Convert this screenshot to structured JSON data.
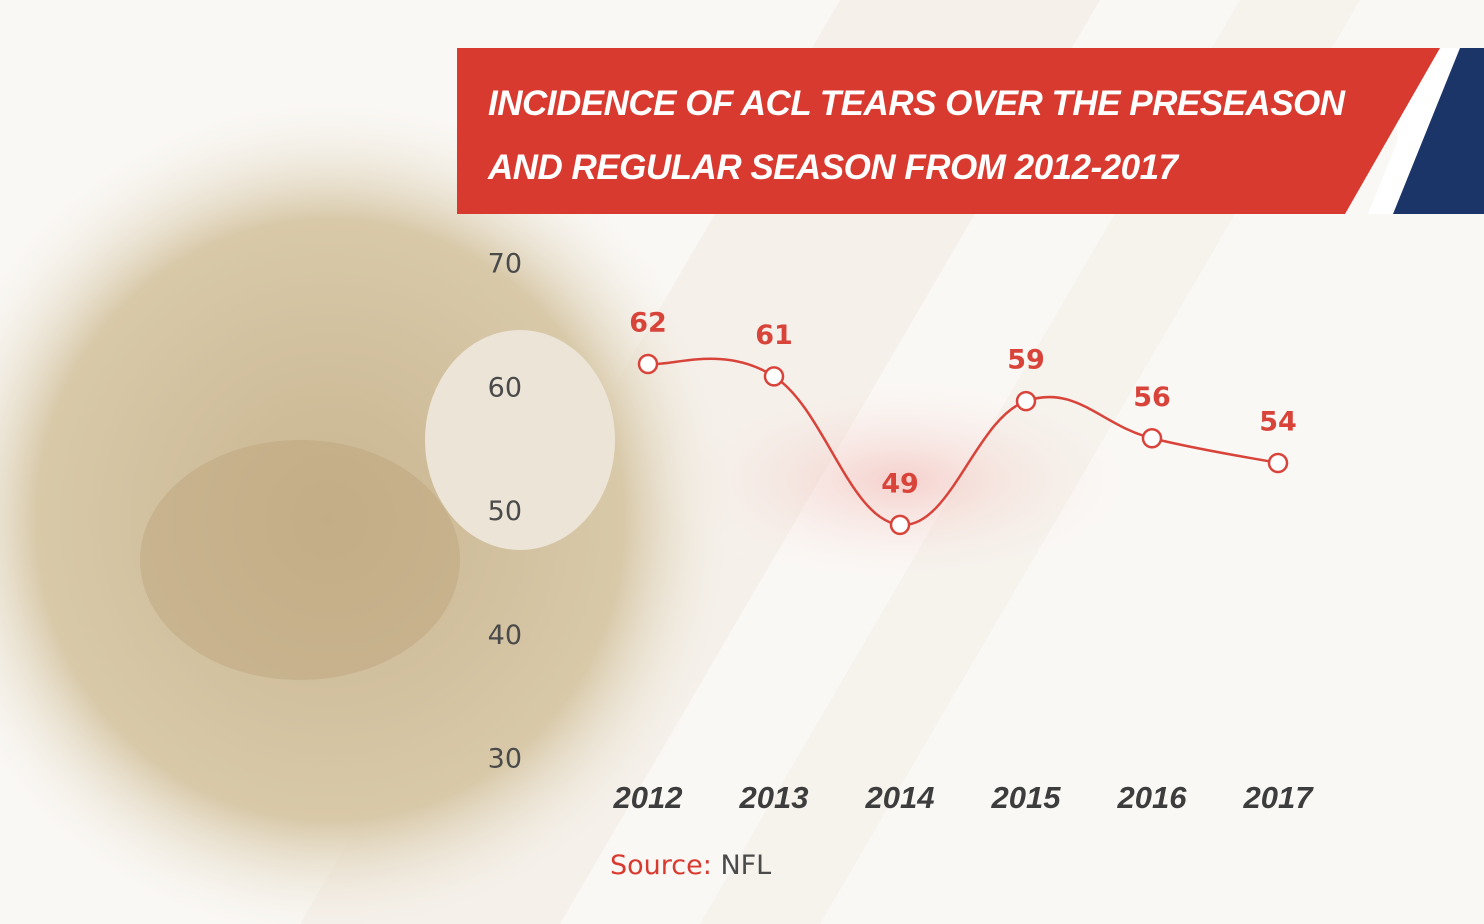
{
  "chart_data": {
    "type": "line",
    "title": "INCIDENCE OF ACL TEARS OVER THE PRESEASON AND REGULAR SEASON FROM 2012-2017",
    "categories": [
      "2012",
      "2013",
      "2014",
      "2015",
      "2016",
      "2017"
    ],
    "values": [
      62,
      61,
      49,
      59,
      56,
      54
    ],
    "color": "#d8433a",
    "ylim": [
      30,
      70
    ],
    "yticks": [
      30,
      40,
      50,
      60,
      70
    ],
    "source_label": "Source:",
    "source": "NFL"
  }
}
